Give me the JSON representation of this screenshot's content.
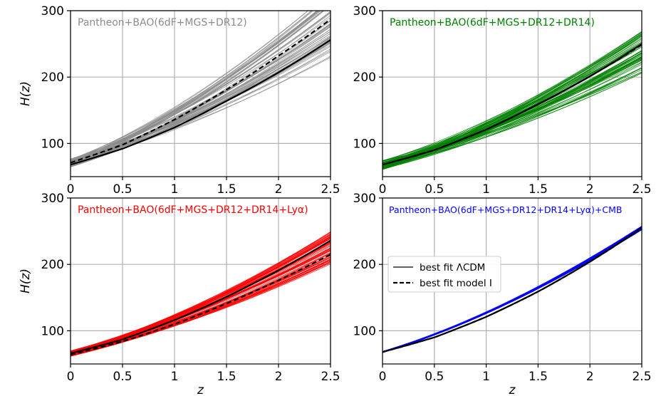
{
  "chart_data": [
    {
      "type": "line",
      "panel": "top-left",
      "annotation": "Pantheon+BAO(6dF+MGS+DR12)",
      "annotation_color": "#8c8c8c",
      "band_color": "#8c8c8c",
      "ylabel": "H(z)",
      "xlabel": "",
      "xlim": [
        0.0,
        2.5
      ],
      "ylim": [
        50,
        300
      ],
      "xticks": [
        0.0,
        0.5,
        1.0,
        1.5,
        2.0,
        2.5
      ],
      "yticks": [
        100,
        200,
        300
      ],
      "grid": true,
      "samples": {
        "h0_min": 64,
        "h0_max": 77,
        "h25_min": 228,
        "h25_max": 330
      },
      "series": [
        {
          "style": "solid",
          "values": {
            "x": [
              0.0,
              0.5,
              1.0,
              1.5,
              2.0,
              2.5
            ],
            "y": [
              68,
              92,
              124,
              164,
              207,
              256
            ]
          }
        },
        {
          "style": "dashed",
          "values": {
            "x": [
              0.0,
              0.5,
              1.0,
              1.5,
              2.0,
              2.5
            ],
            "y": [
              71,
              98,
              136,
              181,
              232,
              287
            ]
          }
        }
      ]
    },
    {
      "type": "line",
      "panel": "top-right",
      "annotation": "Pantheon+BAO(6dF+MGS+DR12+DR14)",
      "annotation_color": "#008000",
      "band_color": "#008000",
      "ylabel": "",
      "xlabel": "",
      "xlim": [
        0.0,
        2.5
      ],
      "ylim": [
        50,
        300
      ],
      "xticks": [
        0.0,
        0.5,
        1.0,
        1.5,
        2.0,
        2.5
      ],
      "yticks": [
        100,
        200,
        300
      ],
      "grid": true,
      "samples": {
        "h0_min": 60,
        "h0_max": 75,
        "h25_min": 205,
        "h25_max": 270
      },
      "series": [
        {
          "style": "solid",
          "values": {
            "x": [
              0.0,
              0.5,
              1.0,
              1.5,
              2.0,
              2.5
            ],
            "y": [
              68,
              90,
              121,
              159,
              201,
              250
            ]
          }
        },
        {
          "style": "dashed",
          "values": {
            "x": [
              0.0,
              0.5,
              1.0,
              1.5,
              2.0,
              2.5
            ],
            "y": [
              68,
              90,
              121,
              159,
              201,
              249
            ]
          }
        }
      ]
    },
    {
      "type": "line",
      "panel": "bottom-left",
      "annotation": "Pantheon+BAO(6dF+MGS+DR12+DR14+Lyα)",
      "annotation_color": "#ff0000",
      "band_color": "#ff0000",
      "ylabel": "H(z)",
      "xlabel": "z",
      "xlim": [
        0.0,
        2.5
      ],
      "ylim": [
        50,
        300
      ],
      "xticks": [
        0.0,
        0.5,
        1.0,
        1.5,
        2.0,
        2.5
      ],
      "yticks": [
        100,
        200,
        300
      ],
      "grid": true,
      "samples": {
        "h0_min": 61,
        "h0_max": 70,
        "h25_min": 200,
        "h25_max": 250
      },
      "series": [
        {
          "style": "solid",
          "values": {
            "x": [
              0.0,
              0.5,
              1.0,
              1.5,
              2.0,
              2.5
            ],
            "y": [
              66,
              87,
              116,
              151,
              191,
              236
            ]
          }
        },
        {
          "style": "dashed",
          "values": {
            "x": [
              0.0,
              0.5,
              1.0,
              1.5,
              2.0,
              2.5
            ],
            "y": [
              64,
              84,
              110,
              141,
              176,
              215
            ]
          }
        }
      ]
    },
    {
      "type": "line",
      "panel": "bottom-right",
      "annotation": "Pantheon+BAO(6dF+MGS+DR12+DR14+Lyα)+CMB",
      "annotation_color": "#0000ff",
      "band_color": "#0000ff",
      "ylabel": "",
      "xlabel": "z",
      "xlim": [
        0.0,
        2.5
      ],
      "ylim": [
        50,
        300
      ],
      "xticks": [
        0.0,
        0.5,
        1.0,
        1.5,
        2.0,
        2.5
      ],
      "yticks": [
        100,
        200,
        300
      ],
      "grid": true,
      "legend": {
        "placement": "center-left",
        "entries": [
          "best fit ΛCDM",
          "best fit model I"
        ]
      },
      "samples": {
        "h0_min": 67,
        "h0_max": 69,
        "h25_min": 252,
        "h25_max": 258
      },
      "series": [
        {
          "style": "solid",
          "values": {
            "x": [
              0.0,
              0.5,
              1.0,
              1.5,
              2.0,
              2.5
            ],
            "y": [
              68,
              90,
              121,
              159,
              204,
              255
            ]
          }
        },
        {
          "style": "dashed",
          "values": {
            "x": [
              0.0,
              0.5,
              1.0,
              1.5,
              2.0,
              2.5
            ],
            "y": [
              68,
              90,
              121,
              159,
              204,
              255
            ]
          }
        }
      ]
    }
  ]
}
